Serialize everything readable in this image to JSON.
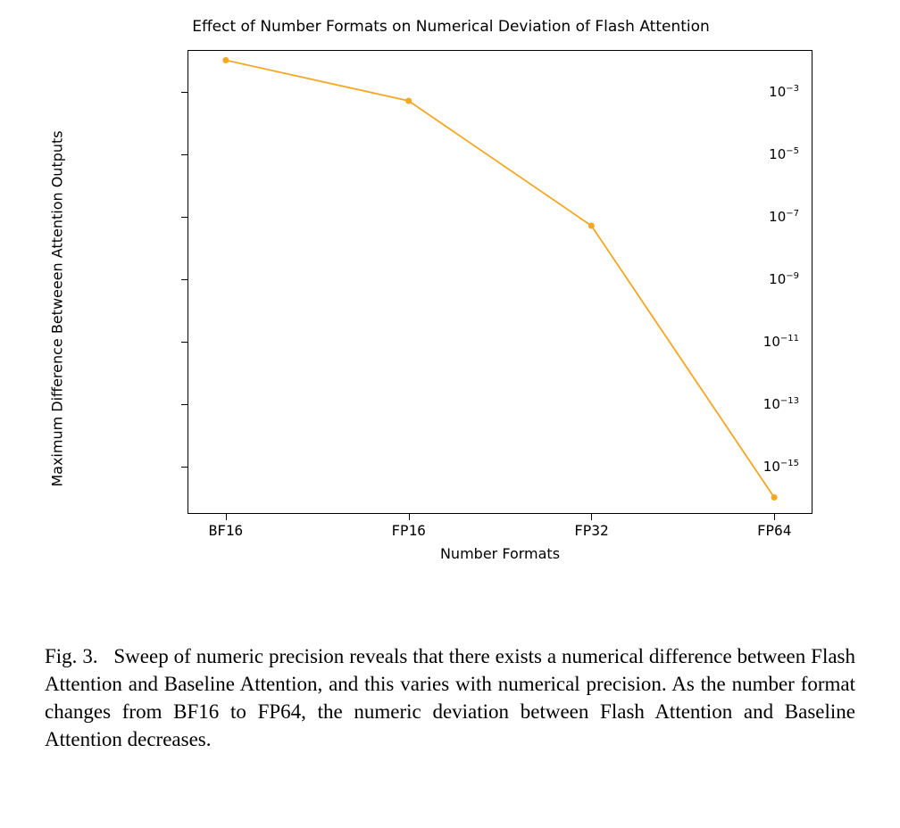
{
  "chart": {
    "type": "line",
    "title": "Effect of Number Formats on Numerical Deviation of Flash Attention",
    "title_fontsize": 17,
    "xlabel": "Number Formats",
    "ylabel": "Maximum Difference Betweeen Attention Outputs",
    "label_fontsize": 16,
    "x_categories": [
      "BF16",
      "FP16",
      "FP32",
      "FP64"
    ],
    "y_values_log10": [
      -2.0,
      -3.3,
      -7.3,
      -16.0
    ],
    "y_scale": "log",
    "ytick_exponents": [
      -3,
      -5,
      -7,
      -9,
      -11,
      -13,
      -15
    ],
    "ylim_log10": [
      -16.5,
      -1.7
    ],
    "line_color": "#f5a623",
    "marker_color": "#f5a623",
    "marker_style": "circle",
    "marker_size": 7,
    "line_width": 1.8,
    "background_color": "#ffffff",
    "border_color": "#000000",
    "tick_fontsize": 15,
    "tick_font_family_x": "monospace"
  },
  "caption": {
    "prefix": "Fig. 3.",
    "text": "Sweep of numeric precision reveals that there exists a numerical difference between Flash Attention and Baseline Attention, and this varies with numerical precision. As the number format changes from BF16 to FP64, the numeric deviation between Flash Attention and Baseline Attention decreases.",
    "font_family": "Times New Roman",
    "font_size": 23
  }
}
